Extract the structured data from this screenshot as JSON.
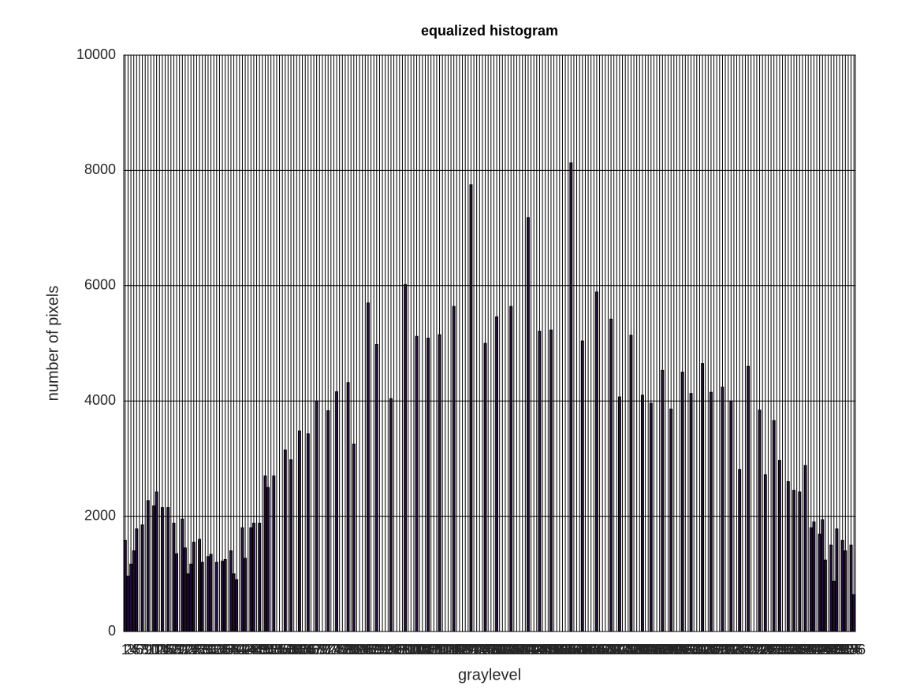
{
  "chart_data": {
    "type": "bar",
    "title": "equalized histogram",
    "xlabel": "graylevel",
    "ylabel": "number of pixels",
    "x": [
      1,
      2,
      3,
      4,
      5,
      6,
      7,
      8,
      9,
      10,
      11,
      12,
      13,
      14,
      15,
      16,
      17,
      18,
      19,
      20,
      21,
      22,
      23,
      24,
      25,
      26,
      27,
      28,
      29,
      30,
      31,
      32,
      33,
      34,
      35,
      36,
      37,
      38,
      39,
      40,
      41,
      42,
      43,
      44,
      45,
      46,
      47,
      48,
      49,
      50,
      51,
      52,
      53,
      54,
      55,
      56,
      57,
      58,
      59,
      60,
      61,
      62,
      63,
      64,
      65,
      66,
      67,
      68,
      69,
      70,
      71,
      72,
      73,
      74,
      75,
      76,
      77,
      78,
      79,
      80,
      81,
      82,
      83,
      84,
      85,
      86,
      87,
      88,
      89,
      90,
      91,
      92,
      93,
      94,
      95,
      96,
      97,
      98,
      99,
      100,
      101,
      102,
      103,
      104,
      105,
      106,
      107,
      108,
      109,
      110,
      111,
      112,
      113,
      114,
      115,
      116,
      117,
      118,
      119,
      120,
      121,
      122,
      123,
      124,
      125,
      126,
      127,
      128,
      129,
      130,
      131,
      132,
      133,
      134,
      135,
      136,
      137,
      138,
      139,
      140,
      141,
      142,
      143,
      144,
      145,
      146,
      147,
      148,
      149,
      150,
      151,
      152,
      153,
      154,
      155,
      156,
      157,
      158,
      159,
      160,
      161,
      162,
      163,
      164,
      165,
      166,
      167,
      168,
      169,
      170,
      171,
      172,
      173,
      174,
      175,
      176,
      177,
      178,
      179,
      180,
      181,
      182,
      183,
      184,
      185,
      186,
      187,
      188,
      189,
      190,
      191,
      192,
      193,
      194,
      195,
      196,
      197,
      198,
      199,
      200,
      201,
      202,
      203,
      204,
      205,
      206,
      207,
      208,
      209,
      210,
      211,
      212,
      213,
      214,
      215,
      216,
      217,
      218,
      219,
      220,
      221,
      222,
      223,
      224,
      225,
      226,
      227,
      228,
      229,
      230,
      231,
      232,
      233,
      234,
      235,
      236,
      237,
      238,
      239,
      240,
      241,
      242,
      243,
      244,
      245,
      246,
      247,
      248,
      249,
      250,
      251,
      252,
      253,
      254,
      255,
      256
    ],
    "values": [
      1580,
      960,
      1170,
      1400,
      1780,
      0,
      1850,
      0,
      2270,
      0,
      2180,
      2420,
      0,
      2150,
      0,
      2150,
      0,
      1880,
      1350,
      0,
      1950,
      1450,
      1000,
      1170,
      1550,
      0,
      1600,
      1200,
      0,
      1300,
      1340,
      0,
      1200,
      0,
      1220,
      1250,
      0,
      1400,
      1000,
      900,
      0,
      1800,
      1270,
      0,
      1800,
      1880,
      0,
      1880,
      0,
      2700,
      2500,
      0,
      2700,
      0,
      0,
      0,
      3150,
      0,
      2980,
      0,
      0,
      3480,
      0,
      0,
      3430,
      0,
      0,
      4000,
      0,
      0,
      0,
      3830,
      0,
      0,
      4160,
      0,
      0,
      0,
      4320,
      0,
      3250,
      0,
      0,
      0,
      0,
      5700,
      0,
      0,
      4980,
      0,
      0,
      0,
      0,
      4040,
      0,
      0,
      0,
      0,
      6020,
      0,
      0,
      0,
      5120,
      0,
      0,
      0,
      5090,
      0,
      0,
      0,
      5150,
      0,
      0,
      0,
      0,
      5640,
      0,
      0,
      0,
      0,
      0,
      7750,
      0,
      0,
      0,
      0,
      5000,
      0,
      0,
      0,
      5460,
      0,
      0,
      0,
      0,
      5640,
      0,
      0,
      0,
      0,
      0,
      7180,
      0,
      0,
      0,
      5210,
      0,
      0,
      0,
      5230,
      0,
      0,
      0,
      0,
      0,
      0,
      8130,
      0,
      0,
      0,
      5040,
      0,
      0,
      0,
      0,
      5890,
      0,
      0,
      0,
      0,
      5420,
      0,
      0,
      4070,
      0,
      0,
      0,
      5140,
      0,
      0,
      0,
      4100,
      0,
      0,
      3960,
      0,
      0,
      0,
      4530,
      0,
      0,
      3860,
      0,
      0,
      0,
      4500,
      0,
      0,
      4130,
      0,
      0,
      0,
      4650,
      0,
      0,
      4150,
      0,
      0,
      0,
      4240,
      0,
      0,
      4000,
      0,
      0,
      2810,
      0,
      0,
      4600,
      0,
      0,
      0,
      3840,
      0,
      2720,
      0,
      0,
      3660,
      0,
      2970,
      0,
      0,
      2600,
      0,
      2450,
      0,
      2420,
      0,
      2880,
      0,
      1800,
      1900,
      0,
      1690,
      1940,
      1240,
      0,
      1500,
      870,
      1780,
      0,
      1580,
      1400,
      0,
      1500,
      640
    ],
    "color": "#26103a",
    "edgecolor": "#000000",
    "xlim": [
      0.5,
      256.5
    ],
    "ylim": [
      0,
      10000
    ],
    "yticks": [
      0,
      2000,
      4000,
      6000,
      8000,
      10000
    ],
    "grid": true
  }
}
